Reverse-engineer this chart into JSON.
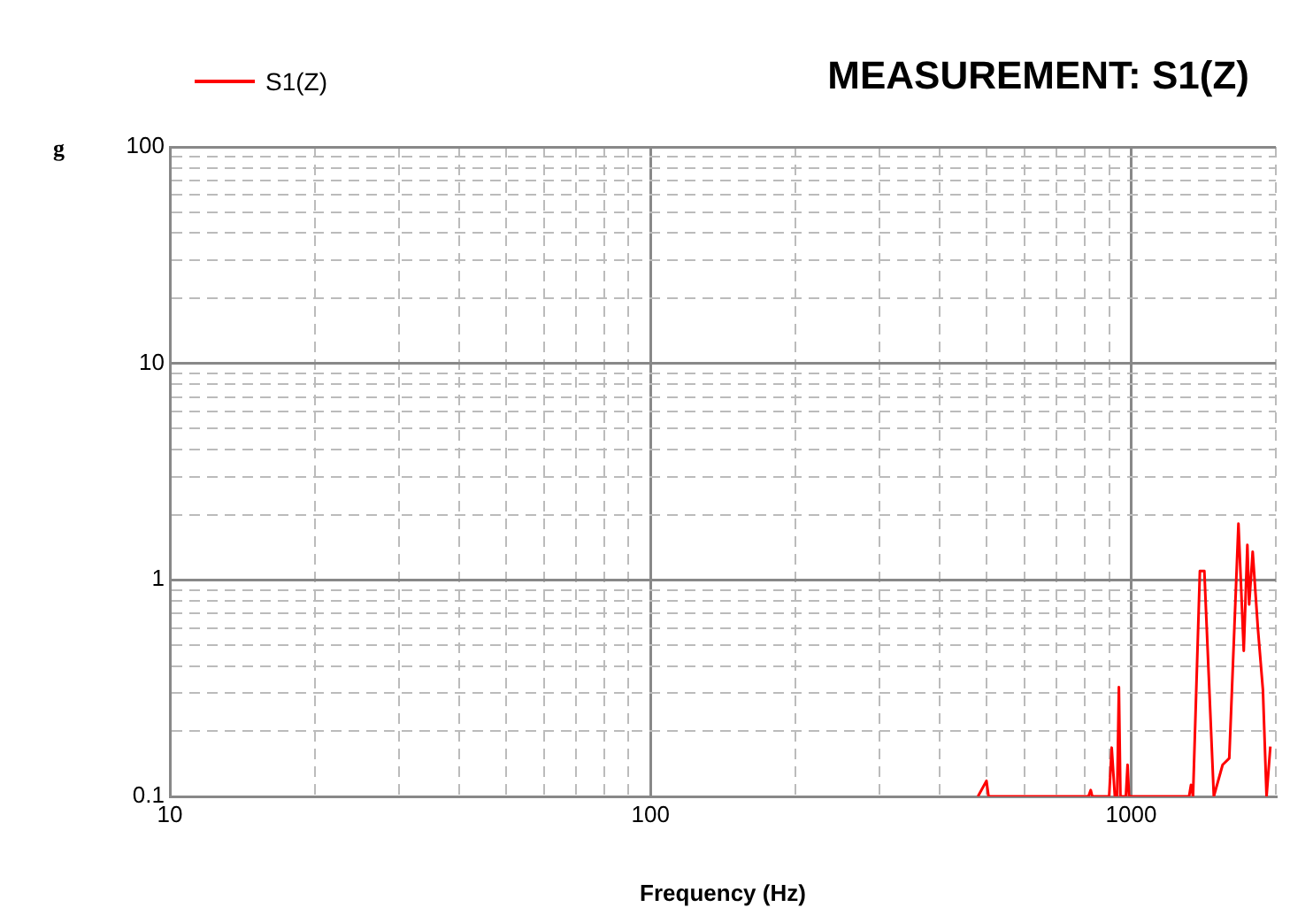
{
  "chart_data": {
    "type": "line",
    "title": "MEASUREMENT: S1(Z)",
    "xlabel": "Frequency (Hz)",
    "ylabel": "g",
    "log": "xy",
    "grid": true,
    "legend": "top left",
    "marker": "none",
    "line_style": "solid",
    "xlim": [
      10,
      2000
    ],
    "ylim": [
      0.1,
      100
    ],
    "xticks": [
      10,
      {
        "value": 20,
        "label": null
      },
      {
        "value": 30,
        "label": null
      },
      {
        "value": 40,
        "label": null
      },
      {
        "value": 50,
        "label": null
      },
      {
        "value": 60,
        "label": null
      },
      {
        "value": 70,
        "label": null
      },
      {
        "value": 80,
        "label": null
      },
      {
        "value": 90,
        "label": null
      },
      100,
      {
        "value": 200,
        "label": null
      },
      {
        "value": 300,
        "label": null
      },
      {
        "value": 400,
        "label": null
      },
      {
        "value": 500,
        "label": null
      },
      {
        "value": 600,
        "label": null
      },
      {
        "value": 700,
        "label": null
      },
      {
        "value": 800,
        "label": null
      },
      {
        "value": 900,
        "label": null
      },
      1000,
      {
        "value": 2000,
        "label": null
      }
    ],
    "yticks": [
      0.1,
      {
        "value": 0.2,
        "label": null
      },
      {
        "value": 0.3,
        "label": null
      },
      {
        "value": 0.4,
        "label": null
      },
      {
        "value": 0.5,
        "label": null
      },
      {
        "value": 0.6,
        "label": null
      },
      {
        "value": 0.7,
        "label": null
      },
      {
        "value": 0.8,
        "label": null
      },
      {
        "value": 0.9,
        "label": null
      },
      1,
      {
        "value": 2,
        "label": null
      },
      {
        "value": 3,
        "label": null
      },
      {
        "value": 4,
        "label": null
      },
      {
        "value": 5,
        "label": null
      },
      {
        "value": 6,
        "label": null
      },
      {
        "value": 7,
        "label": null
      },
      {
        "value": 8,
        "label": null
      },
      {
        "value": 9,
        "label": null
      },
      10,
      {
        "value": 20,
        "label": null
      },
      {
        "value": 30,
        "label": null
      },
      {
        "value": 40,
        "label": null
      },
      {
        "value": 50,
        "label": null
      },
      {
        "value": 60,
        "label": null
      },
      {
        "value": 70,
        "label": null
      },
      {
        "value": 80,
        "label": null
      },
      {
        "value": 90,
        "label": null
      },
      100
    ],
    "series": [
      {
        "name": "S1(Z)",
        "color": "#ff0000",
        "x": [
          480,
          500,
          505,
          815,
          824,
          830,
          900,
          911,
          925,
          935,
          943,
          950,
          975,
          983,
          990,
          1320,
          1332,
          1345,
          1390,
          1420,
          1486,
          1550,
          1600,
          1672,
          1715,
          1745,
          1760,
          1790,
          1835,
          1880,
          1913,
          1948
        ],
        "values": [
          0.1,
          0.118,
          0.1,
          0.1,
          0.107,
          0.1,
          0.1,
          0.168,
          0.1,
          0.1,
          0.32,
          0.1,
          0.1,
          0.14,
          0.1,
          0.1,
          0.113,
          0.1,
          1.1,
          1.1,
          0.1,
          0.14,
          0.15,
          1.82,
          0.47,
          1.45,
          0.77,
          1.35,
          0.6,
          0.31,
          0.1,
          0.17
        ]
      }
    ]
  }
}
